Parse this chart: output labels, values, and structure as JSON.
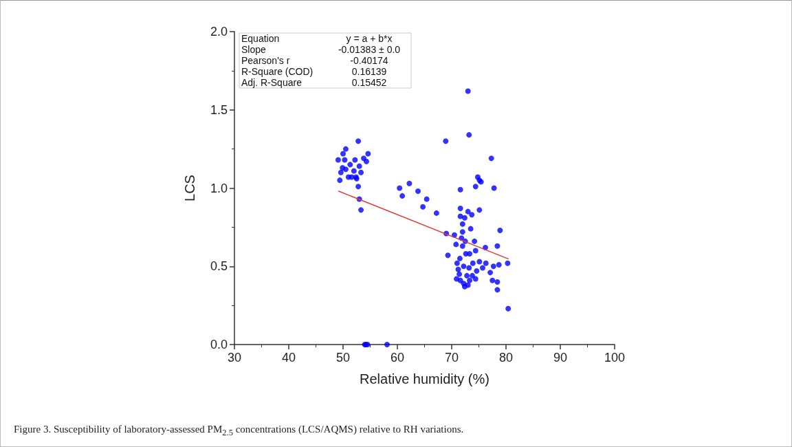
{
  "chart_data": {
    "type": "scatter",
    "xlabel": "Relative humidity (%)",
    "ylabel": "LCS",
    "xlim": [
      30,
      100
    ],
    "xticks": [
      30,
      40,
      50,
      60,
      70,
      80,
      90,
      100
    ],
    "ylim": [
      0,
      2
    ],
    "yticks": [
      {
        "value": 0,
        "label": "0.0"
      },
      {
        "value": 0.5,
        "label": "0.5"
      },
      {
        "value": 1,
        "label": "1.0"
      },
      {
        "value": 1.5,
        "label": "1.5"
      },
      {
        "value": 2,
        "label": "2.0"
      }
    ],
    "grid": false,
    "marker": "circle",
    "annotations": [
      "Equation",
      "y = a + b*x",
      "Slope",
      "-0.01383 ± 0.0",
      "Pearson's r",
      "-0.40174",
      "R-Square (COD)",
      "0.16139",
      "Adj. R-Square",
      "0.15452",
      "Figure 3. Susceptibility of laboratory-assessed PM$_{2.5}$ concentrations (LCS/AQMS) relative to RH variations."
    ],
    "series": [
      {
        "color": "#0000ff",
        "x": [
          52.8,
          50.5,
          54.6,
          50.0,
          49.1,
          50.3,
          52.2,
          53.8,
          54.3,
          51.3,
          53.0,
          49.9,
          50.5,
          52.0,
          53.3,
          49.6,
          51.0,
          51.6,
          52.4,
          52.5,
          49.4,
          52.8,
          53.0,
          53.3,
          54.2,
          54.5,
          54.0,
          58.1,
          60.4,
          62.2,
          60.9,
          63.8,
          65.4,
          64.7,
          67.2,
          71.6,
          71.6,
          73.0,
          73.7,
          75.1,
          71.6,
          72.4,
          72.0,
          73.5,
          74.8,
          75.4,
          74.4,
          75.1,
          73.0,
          73.2,
          68.9,
          77.3,
          77.8,
          78.9,
          74.2,
          76.2,
          78.4,
          73.3,
          74.4,
          80.3,
          75.1,
          76.3,
          73.9,
          73.2,
          75.7,
          77.7,
          78.7,
          77.1,
          74.6,
          73.8,
          74.4,
          73.3,
          77.5,
          78.4,
          78.4,
          80.4,
          69.0,
          69.3,
          70.5,
          70.8,
          71.0,
          71.2,
          71.4,
          71.6,
          71.8,
          72.0,
          72.0,
          72.2,
          72.4,
          72.6,
          72.8,
          72.5,
          71.5,
          73.0,
          70.9,
          72.2
        ],
        "values": [
          1.3,
          1.25,
          1.22,
          1.22,
          1.18,
          1.18,
          1.18,
          1.19,
          1.17,
          1.15,
          1.14,
          1.13,
          1.12,
          1.11,
          1.1,
          1.1,
          1.07,
          1.07,
          1.07,
          1.06,
          1.05,
          1.01,
          0.93,
          0.86,
          0,
          0,
          0,
          0,
          1.0,
          1.03,
          0.95,
          0.98,
          0.93,
          0.88,
          0.84,
          0.99,
          0.87,
          0.85,
          0.83,
          0.86,
          0.82,
          0.81,
          0.77,
          0.74,
          1.07,
          1.04,
          1.01,
          1.05,
          1.62,
          1.34,
          1.3,
          1.19,
          1.0,
          0.73,
          0.66,
          0.62,
          0.63,
          0.58,
          0.6,
          0.52,
          0.53,
          0.52,
          0.52,
          0.49,
          0.49,
          0.5,
          0.51,
          0.46,
          0.47,
          0.44,
          0.42,
          0.41,
          0.41,
          0.4,
          0.35,
          0.23,
          0.71,
          0.57,
          0.7,
          0.64,
          0.52,
          0.48,
          0.45,
          0.41,
          0.68,
          0.72,
          0.63,
          0.39,
          0.37,
          0.58,
          0.44,
          0.66,
          0.55,
          0.38,
          0.42,
          0.5
        ]
      },
      {
        "type": "line",
        "marker": "none",
        "color": "#e03c31",
        "x": [
          49.2,
          80.4
        ],
        "values": [
          0.98,
          0.548
        ]
      }
    ]
  }
}
